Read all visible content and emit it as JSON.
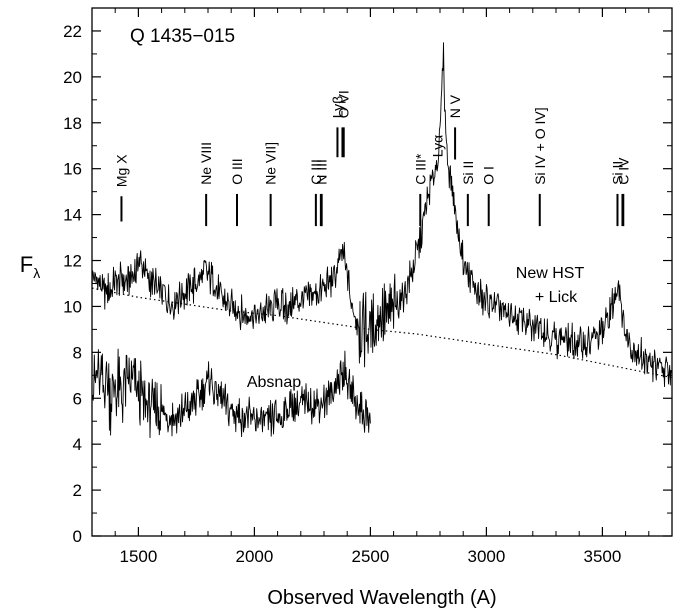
{
  "chart_data": {
    "type": "line",
    "title": "Q 1435−015",
    "xlabel": "Observed Wavelength (A)",
    "ylabel_main": "F",
    "ylabel_sub": "λ",
    "xlim": [
      1300,
      3800
    ],
    "ylim": [
      0,
      23
    ],
    "xticks": [
      1500,
      2000,
      2500,
      3000,
      3500
    ],
    "yticks": [
      0,
      2,
      4,
      6,
      8,
      10,
      12,
      14,
      16,
      18,
      20,
      22
    ],
    "grid": false,
    "colors": {
      "line": "#000000",
      "continuum": "#000000"
    },
    "series": [
      {
        "name": "New HST + Lick",
        "label_lines": [
          "New HST",
          "+ Lick"
        ],
        "x": [
          1300,
          1330,
          1360,
          1400,
          1430,
          1460,
          1490,
          1500,
          1520,
          1560,
          1600,
          1650,
          1700,
          1750,
          1780,
          1800,
          1830,
          1860,
          1900,
          1940,
          1980,
          2020,
          2060,
          2100,
          2150,
          2200,
          2250,
          2300,
          2340,
          2360,
          2380,
          2400,
          2420,
          2440,
          2480,
          2520,
          2560,
          2600,
          2640,
          2680,
          2710,
          2730,
          2750,
          2770,
          2790,
          2800,
          2810,
          2815,
          2820,
          2830,
          2845,
          2860,
          2880,
          2900,
          2920,
          2950,
          3000,
          3050,
          3100,
          3150,
          3200,
          3230,
          3260,
          3300,
          3350,
          3400,
          3450,
          3500,
          3530,
          3550,
          3565,
          3575,
          3585,
          3600,
          3630,
          3670,
          3700,
          3750,
          3800
        ],
        "y": [
          11.5,
          11.0,
          10.6,
          11.0,
          11.2,
          11.0,
          11.6,
          12.2,
          11.7,
          11.0,
          10.6,
          10.2,
          10.6,
          11.0,
          11.4,
          11.5,
          10.9,
          10.3,
          10.0,
          9.7,
          9.8,
          9.6,
          9.9,
          10.1,
          9.9,
          10.3,
          10.5,
          10.7,
          11.2,
          11.7,
          12.3,
          11.4,
          10.0,
          9.3,
          9.1,
          9.2,
          9.6,
          9.9,
          10.4,
          11.5,
          12.6,
          13.8,
          14.8,
          15.6,
          16.5,
          17.5,
          20.0,
          21.3,
          18.8,
          16.7,
          15.7,
          14.6,
          13.2,
          12.2,
          11.4,
          10.8,
          10.2,
          9.9,
          9.6,
          9.5,
          9.0,
          9.3,
          8.9,
          8.6,
          8.5,
          8.4,
          8.5,
          8.8,
          9.5,
          10.3,
          11.0,
          10.7,
          9.8,
          8.8,
          8.2,
          7.8,
          7.5,
          7.3,
          7.1
        ]
      },
      {
        "name": "Absnap",
        "label_lines": [
          "Absnap"
        ],
        "x": [
          1300,
          1320,
          1340,
          1360,
          1380,
          1400,
          1430,
          1460,
          1500,
          1550,
          1600,
          1650,
          1700,
          1750,
          1790,
          1810,
          1840,
          1880,
          1920,
          1960,
          2000,
          2040,
          2080,
          2120,
          2160,
          2200,
          2240,
          2280,
          2320,
          2350,
          2370,
          2385,
          2400,
          2420,
          2440,
          2460,
          2480,
          2500
        ],
        "y": [
          6.6,
          7.2,
          6.5,
          6.9,
          6.1,
          6.7,
          6.2,
          6.6,
          6.3,
          5.7,
          5.4,
          5.1,
          5.4,
          5.9,
          6.6,
          6.9,
          6.2,
          5.7,
          5.3,
          5.1,
          5.0,
          4.9,
          5.1,
          5.3,
          5.6,
          5.7,
          5.8,
          5.9,
          6.0,
          6.5,
          6.9,
          7.3,
          6.8,
          6.2,
          5.8,
          5.5,
          5.3,
          5.1
        ]
      }
    ],
    "continuum": {
      "x": [
        1300,
        1500,
        1700,
        1900,
        2100,
        2300,
        2500,
        2700,
        2900,
        3100,
        3300,
        3500,
        3700,
        3800
      ],
      "y": [
        10.8,
        10.4,
        10.1,
        9.8,
        9.6,
        9.3,
        9.0,
        8.8,
        8.5,
        8.2,
        7.9,
        7.5,
        7.1,
        6.9
      ]
    },
    "line_ids": [
      {
        "label": "Mg X",
        "x": 1427,
        "doubled": false,
        "tick_bottom": 13.7,
        "tick_top": 14.8,
        "label_bottom": 15.2
      },
      {
        "label": "Ne VIII",
        "x": 1792,
        "doubled": false,
        "tick_bottom": 13.5,
        "tick_top": 14.9,
        "label_bottom": 15.3
      },
      {
        "label": "O III",
        "x": 1925,
        "doubled": false,
        "tick_bottom": 13.5,
        "tick_top": 14.9,
        "label_bottom": 15.3
      },
      {
        "label": "Ne VII]",
        "x": 2070,
        "doubled": false,
        "tick_bottom": 13.5,
        "tick_top": 14.9,
        "label_bottom": 15.3
      },
      {
        "label": "C III",
        "x": 2265,
        "doubled": true,
        "tick_bottom": 13.5,
        "tick_top": 14.9,
        "label_bottom": 15.3
      },
      {
        "label": "N III",
        "x": 2290,
        "doubled": false,
        "tick_bottom": 13.5,
        "tick_top": 14.9,
        "label_bottom": 15.3
      },
      {
        "label": "Lyβ",
        "x": 2358,
        "doubled": true,
        "tick_bottom": 16.5,
        "tick_top": 17.8,
        "label_bottom": 18.2
      },
      {
        "label": "O VI",
        "x": 2385,
        "doubled": false,
        "tick_bottom": 16.5,
        "tick_top": 17.8,
        "label_bottom": 18.2
      },
      {
        "label": "C III*",
        "x": 2715,
        "doubled": false,
        "tick_bottom": 13.5,
        "tick_top": 14.9,
        "label_bottom": 15.3
      },
      {
        "label": "Lyα",
        "x": 2790,
        "doubled": false,
        "tick_bottom": 16.3,
        "tick_top": 16.3,
        "label_bottom": 16.5
      },
      {
        "label": "N V",
        "x": 2865,
        "doubled": false,
        "tick_bottom": 16.4,
        "tick_top": 17.8,
        "label_bottom": 18.2
      },
      {
        "label": "Si II",
        "x": 2920,
        "doubled": false,
        "tick_bottom": 13.5,
        "tick_top": 14.9,
        "label_bottom": 15.3
      },
      {
        "label": "O I",
        "x": 3010,
        "doubled": false,
        "tick_bottom": 13.5,
        "tick_top": 14.9,
        "label_bottom": 15.3
      },
      {
        "label": "Si IV + O IV]",
        "x": 3230,
        "doubled": false,
        "tick_bottom": 13.5,
        "tick_top": 14.9,
        "label_bottom": 15.3
      },
      {
        "label": "Si II",
        "x": 3565,
        "doubled": true,
        "tick_bottom": 13.5,
        "tick_top": 14.9,
        "label_bottom": 15.3
      },
      {
        "label": "C IV",
        "x": 3590,
        "doubled": false,
        "tick_bottom": 13.5,
        "tick_top": 14.9,
        "label_bottom": 15.3
      }
    ]
  }
}
